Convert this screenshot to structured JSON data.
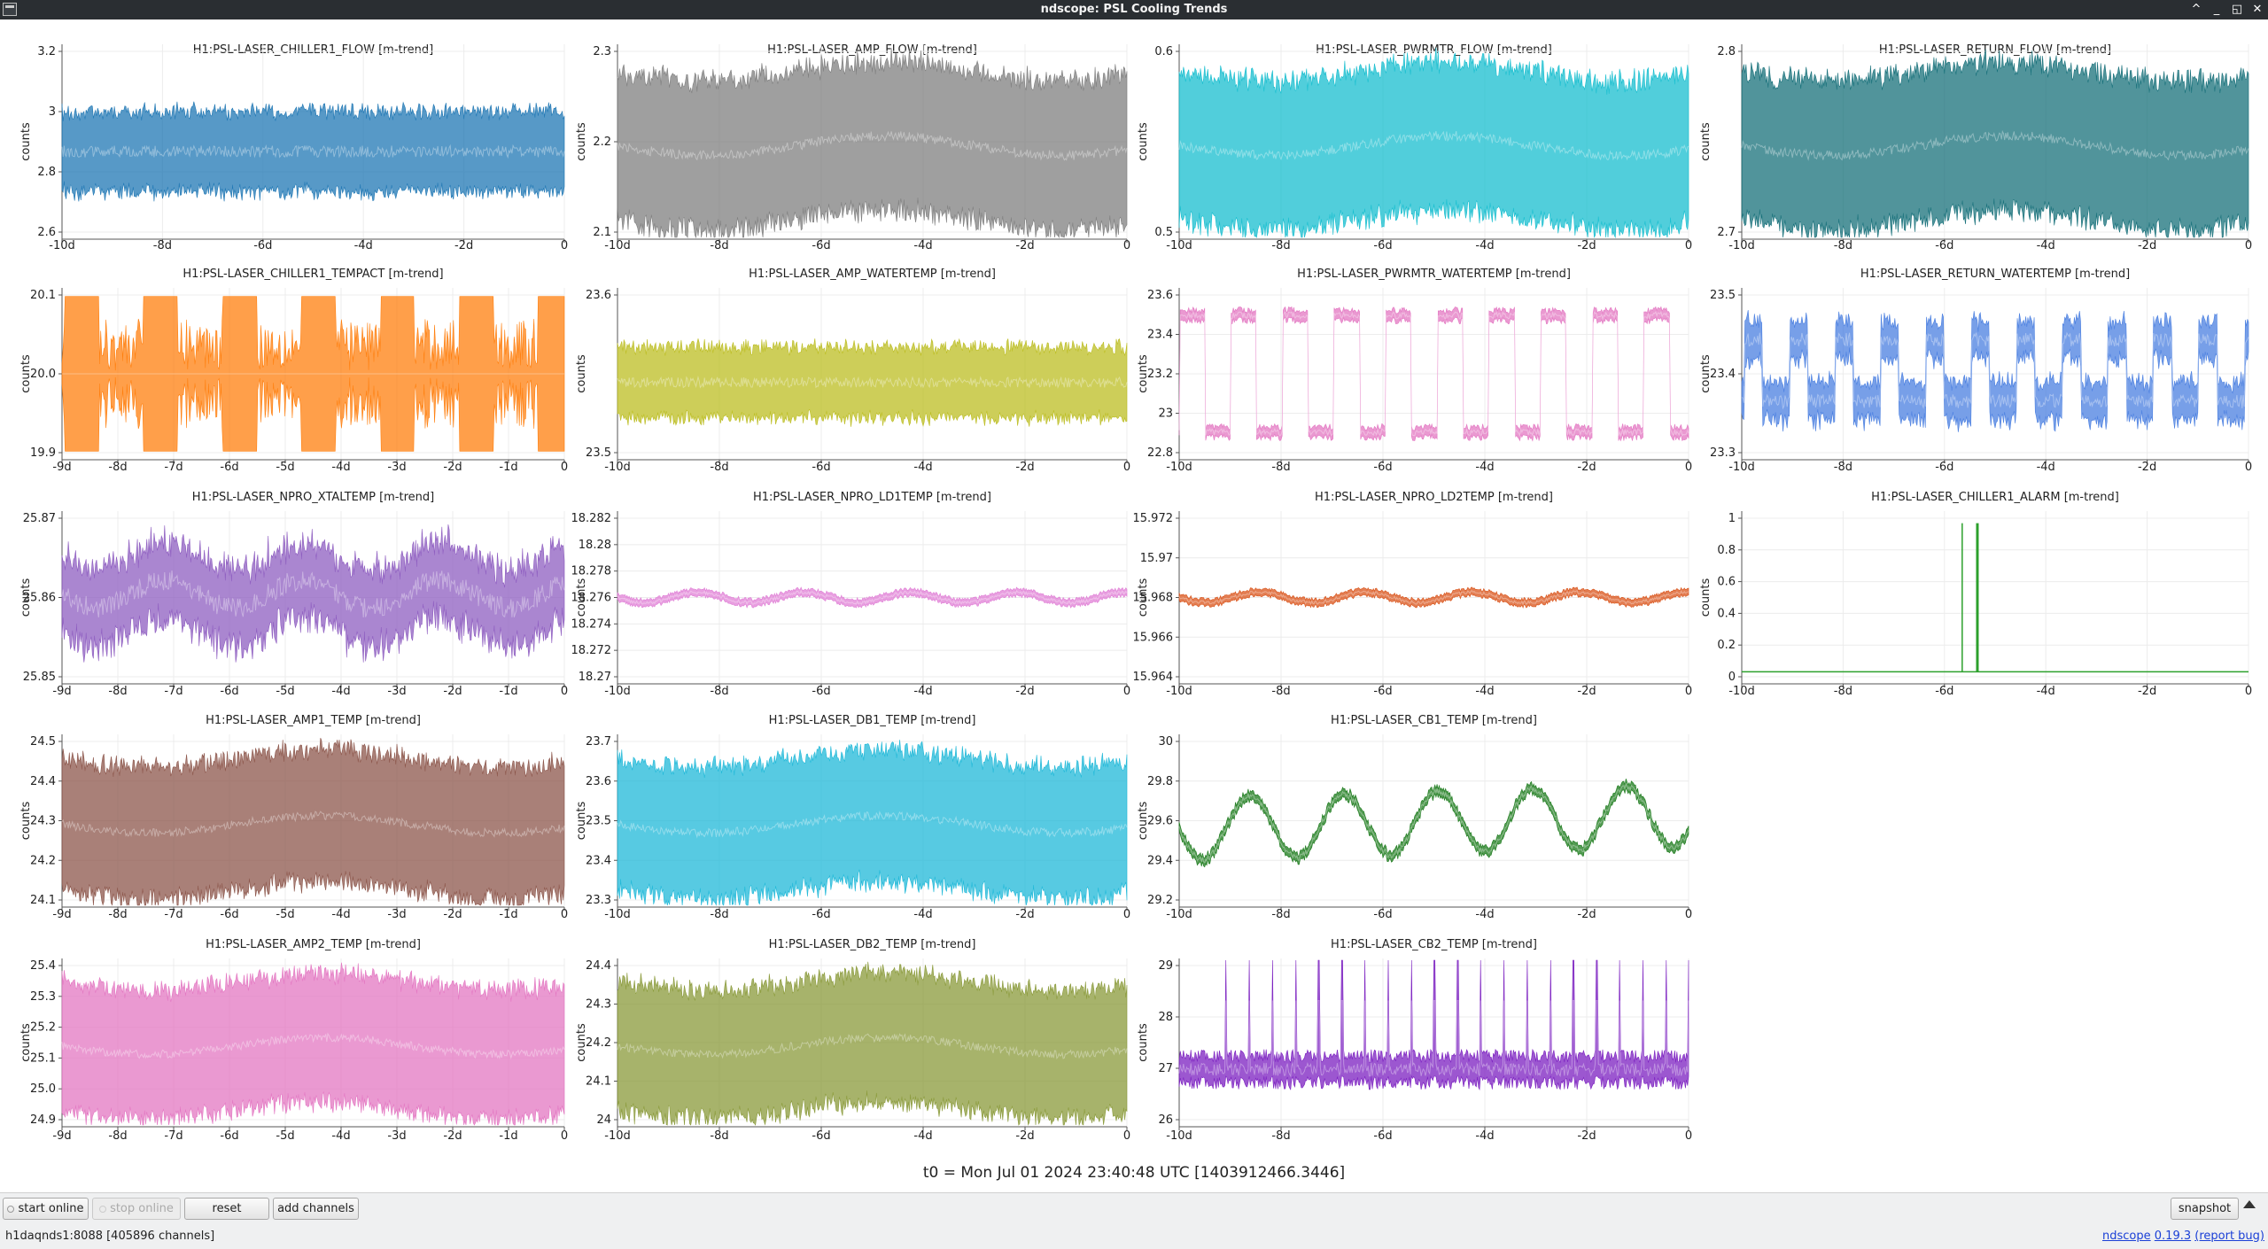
{
  "window": {
    "title": "ndscope: PSL Cooling Trends",
    "buttons": [
      "^",
      "_",
      "◱",
      "✕"
    ]
  },
  "plots": [
    {
      "title": "H1:PSL-LASER_CHILLER1_FLOW [m-trend]",
      "ylabel": "counts",
      "color": "#1f77b4",
      "style": "band",
      "yticks": [
        "3.2",
        "3",
        "2.8",
        "2.6"
      ],
      "xticks": [
        "-10d",
        "-8d",
        "-6d",
        "-4d",
        "-2d",
        "0"
      ]
    },
    {
      "title": "H1:PSL-LASER_AMP_FLOW [m-trend]",
      "ylabel": "counts",
      "color": "#7f7f7f",
      "style": "threeband",
      "yticks": [
        "2.3",
        "2.2",
        "2.1"
      ],
      "xticks": [
        "-10d",
        "-8d",
        "-6d",
        "-4d",
        "-2d",
        "0"
      ]
    },
    {
      "title": "H1:PSL-LASER_PWRMTR_FLOW [m-trend]",
      "ylabel": "counts",
      "color": "#17becf",
      "style": "threeband",
      "yticks": [
        "0.6",
        "0.5"
      ],
      "xticks": [
        "-10d",
        "-8d",
        "-6d",
        "-4d",
        "-2d",
        "0"
      ]
    },
    {
      "title": "H1:PSL-LASER_RETURN_FLOW [m-trend]",
      "ylabel": "counts",
      "color": "#17707a",
      "style": "threeband",
      "yticks": [
        "2.8",
        "2.7"
      ],
      "xticks": [
        "-10d",
        "-8d",
        "-6d",
        "-4d",
        "-2d",
        "0"
      ]
    },
    {
      "title": "H1:PSL-LASER_CHILLER1_TEMPACT [m-trend]",
      "ylabel": "counts",
      "color": "#ff7f0e",
      "style": "binary",
      "yticks": [
        "20.1",
        "20.0",
        "19.9"
      ],
      "xticks": [
        "-9d",
        "-8d",
        "-7d",
        "-6d",
        "-5d",
        "-4d",
        "-3d",
        "-2d",
        "-1d",
        "0"
      ]
    },
    {
      "title": "H1:PSL-LASER_AMP_WATERTEMP [m-trend]",
      "ylabel": "counts",
      "color": "#bcbd22",
      "style": "band",
      "yticks": [
        "23.6",
        "23.5"
      ],
      "xticks": [
        "-10d",
        "-8d",
        "-6d",
        "-4d",
        "-2d",
        "0"
      ]
    },
    {
      "title": "H1:PSL-LASER_PWRMTR_WATERTEMP [m-trend]",
      "ylabel": "counts",
      "color": "#e377c2",
      "style": "square",
      "yticks": [
        "23.6",
        "23.4",
        "23.2",
        "23",
        "22.8"
      ],
      "xticks": [
        "-10d",
        "-8d",
        "-6d",
        "-4d",
        "-2d",
        "0"
      ]
    },
    {
      "title": "H1:PSL-LASER_RETURN_WATERTEMP [m-trend]",
      "ylabel": "counts",
      "color": "#4a7fe0",
      "style": "steps",
      "yticks": [
        "23.5",
        "23.4",
        "23.3"
      ],
      "xticks": [
        "-10d",
        "-8d",
        "-6d",
        "-4d",
        "-2d",
        "0"
      ]
    },
    {
      "title": "H1:PSL-LASER_NPRO_XTALTEMP [m-trend]",
      "ylabel": "counts",
      "color": "#8e5dc0",
      "style": "noisy",
      "yticks": [
        "25.87",
        "25.86",
        "25.85"
      ],
      "xticks": [
        "-9d",
        "-8d",
        "-7d",
        "-6d",
        "-5d",
        "-4d",
        "-3d",
        "-2d",
        "-1d",
        "0"
      ]
    },
    {
      "title": "H1:PSL-LASER_NPRO_LD1TEMP [m-trend]",
      "ylabel": "counts",
      "color": "#e07fd6",
      "style": "digital",
      "yticks": [
        "18.282",
        "18.28",
        "18.278",
        "18.276",
        "18.274",
        "18.272",
        "18.27"
      ],
      "xticks": [
        "-10d",
        "-8d",
        "-6d",
        "-4d",
        "-2d",
        "0"
      ]
    },
    {
      "title": "H1:PSL-LASER_NPRO_LD2TEMP [m-trend]",
      "ylabel": "counts",
      "color": "#d95319",
      "style": "digital",
      "yticks": [
        "15.972",
        "15.97",
        "15.968",
        "15.966",
        "15.964"
      ],
      "xticks": [
        "-10d",
        "-8d",
        "-6d",
        "-4d",
        "-2d",
        "0"
      ]
    },
    {
      "title": "H1:PSL-LASER_CHILLER1_ALARM [m-trend]",
      "ylabel": "counts",
      "color": "#2ca02c",
      "style": "alarm",
      "yticks": [
        "1",
        "0.8",
        "0.6",
        "0.4",
        "0.2",
        "0"
      ],
      "xticks": [
        "-10d",
        "-8d",
        "-6d",
        "-4d",
        "-2d",
        "0"
      ]
    },
    {
      "title": "H1:PSL-LASER_AMP1_TEMP [m-trend]",
      "ylabel": "counts",
      "color": "#8c564b",
      "style": "threeband",
      "yticks": [
        "24.5",
        "24.4",
        "24.3",
        "24.2",
        "24.1"
      ],
      "xticks": [
        "-9d",
        "-8d",
        "-7d",
        "-6d",
        "-5d",
        "-4d",
        "-3d",
        "-2d",
        "-1d",
        "0"
      ]
    },
    {
      "title": "H1:PSL-LASER_DB1_TEMP [m-trend]",
      "ylabel": "counts",
      "color": "#1fb8d8",
      "style": "threeband",
      "yticks": [
        "23.7",
        "23.6",
        "23.5",
        "23.4",
        "23.3"
      ],
      "xticks": [
        "-10d",
        "-8d",
        "-6d",
        "-4d",
        "-2d",
        "0"
      ]
    },
    {
      "title": "H1:PSL-LASER_CB1_TEMP [m-trend]",
      "ylabel": "counts",
      "color": "#1a7a1a",
      "style": "wave",
      "yticks": [
        "30",
        "29.8",
        "29.6",
        "29.4",
        "29.2"
      ],
      "xticks": [
        "-10d",
        "-8d",
        "-6d",
        "-4d",
        "-2d",
        "0"
      ]
    },
    null,
    {
      "title": "H1:PSL-LASER_AMP2_TEMP [m-trend]",
      "ylabel": "counts",
      "color": "#e377c2",
      "style": "threeband",
      "yticks": [
        "25.4",
        "25.3",
        "25.2",
        "25.1",
        "25.0",
        "24.9"
      ],
      "xticks": [
        "-9d",
        "-8d",
        "-7d",
        "-6d",
        "-5d",
        "-4d",
        "-3d",
        "-2d",
        "-1d",
        "0"
      ]
    },
    {
      "title": "H1:PSL-LASER_DB2_TEMP [m-trend]",
      "ylabel": "counts",
      "color": "#8a9a3a",
      "style": "threeband",
      "yticks": [
        "24.4",
        "24.3",
        "24.2",
        "24.1",
        "24"
      ],
      "xticks": [
        "-10d",
        "-8d",
        "-6d",
        "-4d",
        "-2d",
        "0"
      ]
    },
    {
      "title": "H1:PSL-LASER_CB2_TEMP [m-trend]",
      "ylabel": "counts",
      "color": "#7b1fc0",
      "style": "spikes",
      "yticks": [
        "29",
        "28",
        "27",
        "26"
      ],
      "xticks": [
        "-10d",
        "-8d",
        "-6d",
        "-4d",
        "-2d",
        "0"
      ]
    },
    null
  ],
  "t0_label": "t0 = Mon Jul 01 2024 23:40:48 UTC [1403912466.3446]",
  "toolbar": {
    "start_online": "start online",
    "stop_online": "stop online",
    "reset": "reset",
    "add_channels": "add channels",
    "snapshot": "snapshot"
  },
  "status": {
    "server": "h1daqnds1:8088  [405896 channels]",
    "app_name": "ndscope",
    "version": "0.19.3",
    "report_bug": "(report bug)"
  }
}
